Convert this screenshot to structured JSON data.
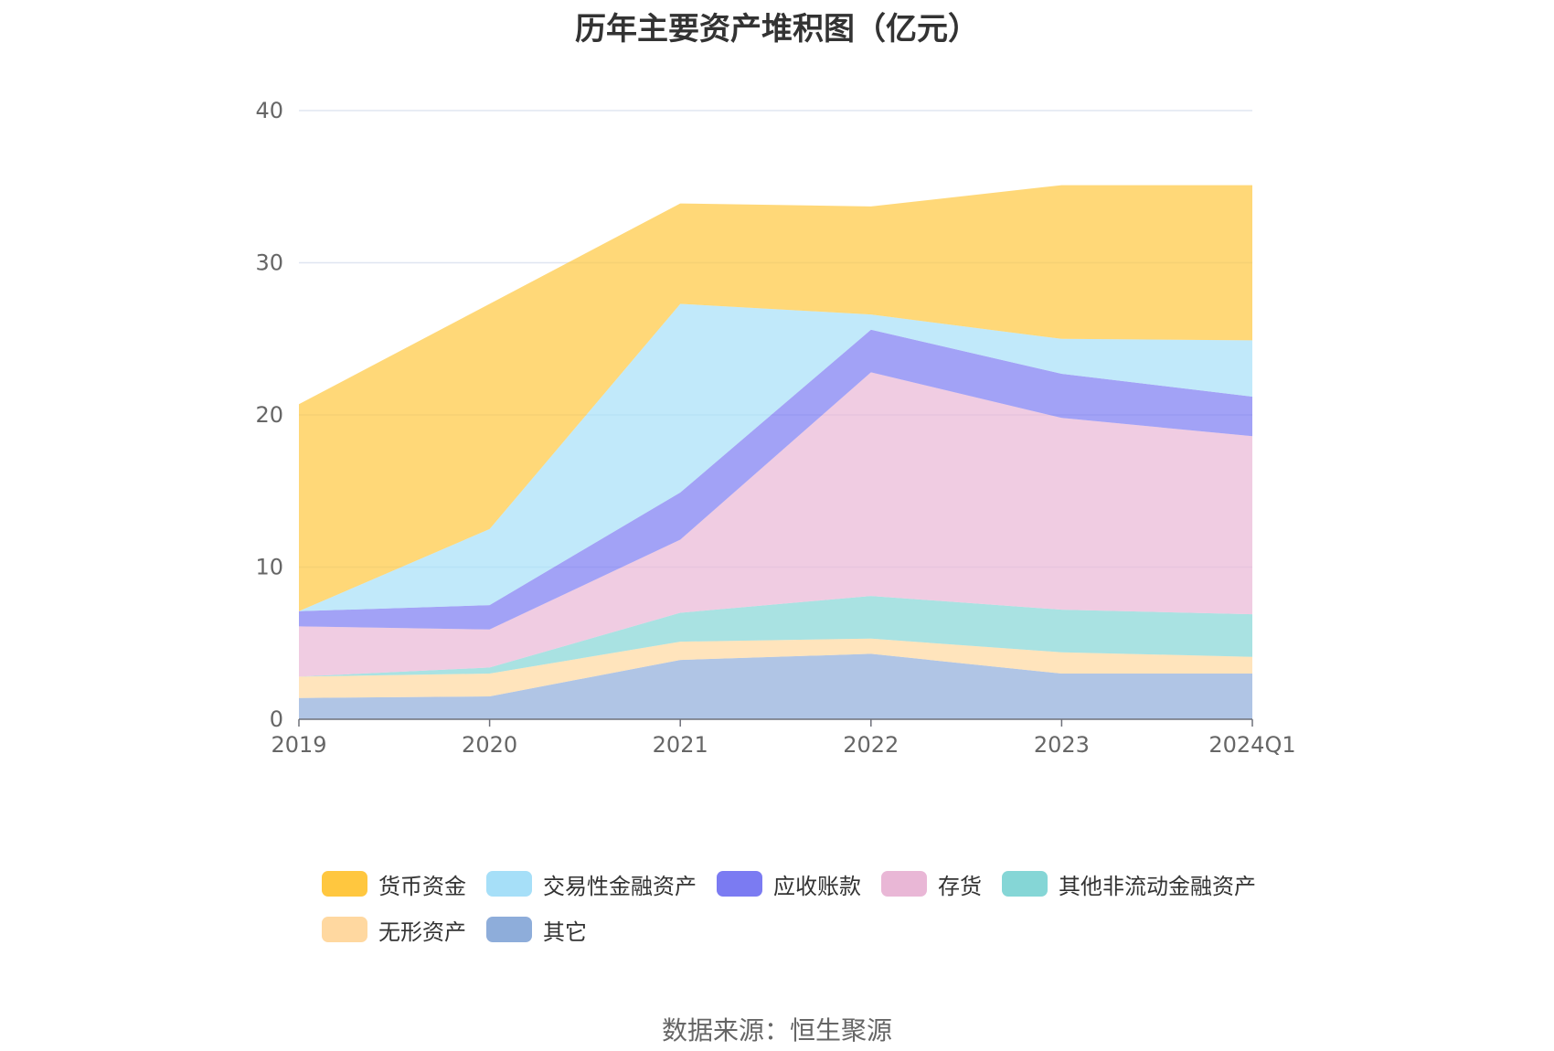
{
  "chart_data": {
    "type": "area",
    "stacked": true,
    "title": "历年主要资产堆积图（亿元）",
    "source": "数据来源：恒生聚源",
    "categories": [
      "2019",
      "2020",
      "2021",
      "2022",
      "2023",
      "2024Q1"
    ],
    "y_ticks": [
      "0",
      "10",
      "20",
      "30",
      "40"
    ],
    "ylim": [
      0,
      40
    ],
    "grid": true,
    "legend_position": "bottom",
    "series": [
      {
        "name": "其它",
        "color": "#8EADDA",
        "values": [
          1.4,
          1.5,
          3.9,
          4.3,
          3.0,
          3.0
        ]
      },
      {
        "name": "无形资产",
        "color": "#FFD8A0",
        "values": [
          1.4,
          1.5,
          1.2,
          1.0,
          1.4,
          1.1
        ]
      },
      {
        "name": "其他非流动金融资产",
        "color": "#85D6D6",
        "values": [
          0.0,
          0.4,
          1.9,
          2.8,
          2.8,
          2.8
        ]
      },
      {
        "name": "存货",
        "color": "#E9B7D6",
        "values": [
          3.3,
          2.5,
          4.8,
          14.7,
          12.6,
          11.7
        ]
      },
      {
        "name": "应收账款",
        "color": "#7B7BF2",
        "values": [
          1.0,
          1.6,
          3.1,
          2.8,
          2.9,
          2.6
        ]
      },
      {
        "name": "交易性金融资产",
        "color": "#A6DFF8",
        "values": [
          0.0,
          5.0,
          12.4,
          1.0,
          2.3,
          3.7
        ]
      },
      {
        "name": "货币资金",
        "color": "#FFC73F",
        "values": [
          13.6,
          14.8,
          6.6,
          7.1,
          10.1,
          10.2
        ]
      }
    ],
    "legend_order": [
      "货币资金",
      "交易性金融资产",
      "应收账款",
      "存货",
      "其他非流动金融资产",
      "无形资产",
      "其它"
    ]
  }
}
